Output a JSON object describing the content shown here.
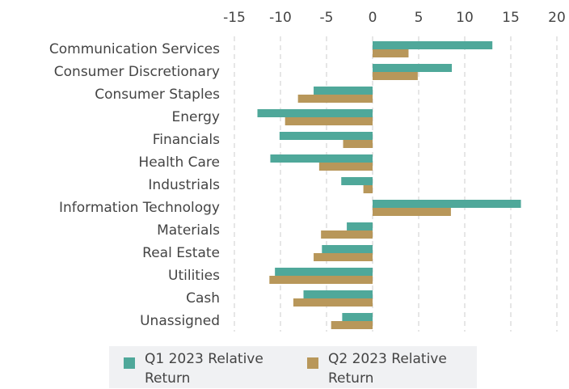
{
  "chart_data": {
    "type": "hbar",
    "categories": [
      "Communication Services",
      "Consumer Discretionary",
      "Consumer Staples",
      "Energy",
      "Financials",
      "Health Care",
      "Industrials",
      "Information Technology",
      "Materials",
      "Real Estate",
      "Utilities",
      "Cash",
      "Unassigned"
    ],
    "series": [
      {
        "name": "Q1 2023 Relative Return",
        "color": "#4fa89a",
        "values": [
          13.0,
          8.6,
          -6.4,
          -12.5,
          -10.1,
          -11.1,
          -3.4,
          16.1,
          -2.8,
          -5.5,
          -10.6,
          -7.5,
          -3.3
        ]
      },
      {
        "name": "Q2 2023 Relative Return",
        "color": "#b8975a",
        "values": [
          3.9,
          4.9,
          -8.1,
          -9.5,
          -3.2,
          -5.8,
          -1.0,
          8.5,
          -5.6,
          -6.4,
          -11.2,
          -8.6,
          -4.5
        ]
      }
    ],
    "xlim": [
      -15,
      20
    ],
    "xticks": [
      -15,
      -10,
      -5,
      0,
      5,
      10,
      15,
      20
    ],
    "grid": true,
    "legend": "bottom"
  }
}
